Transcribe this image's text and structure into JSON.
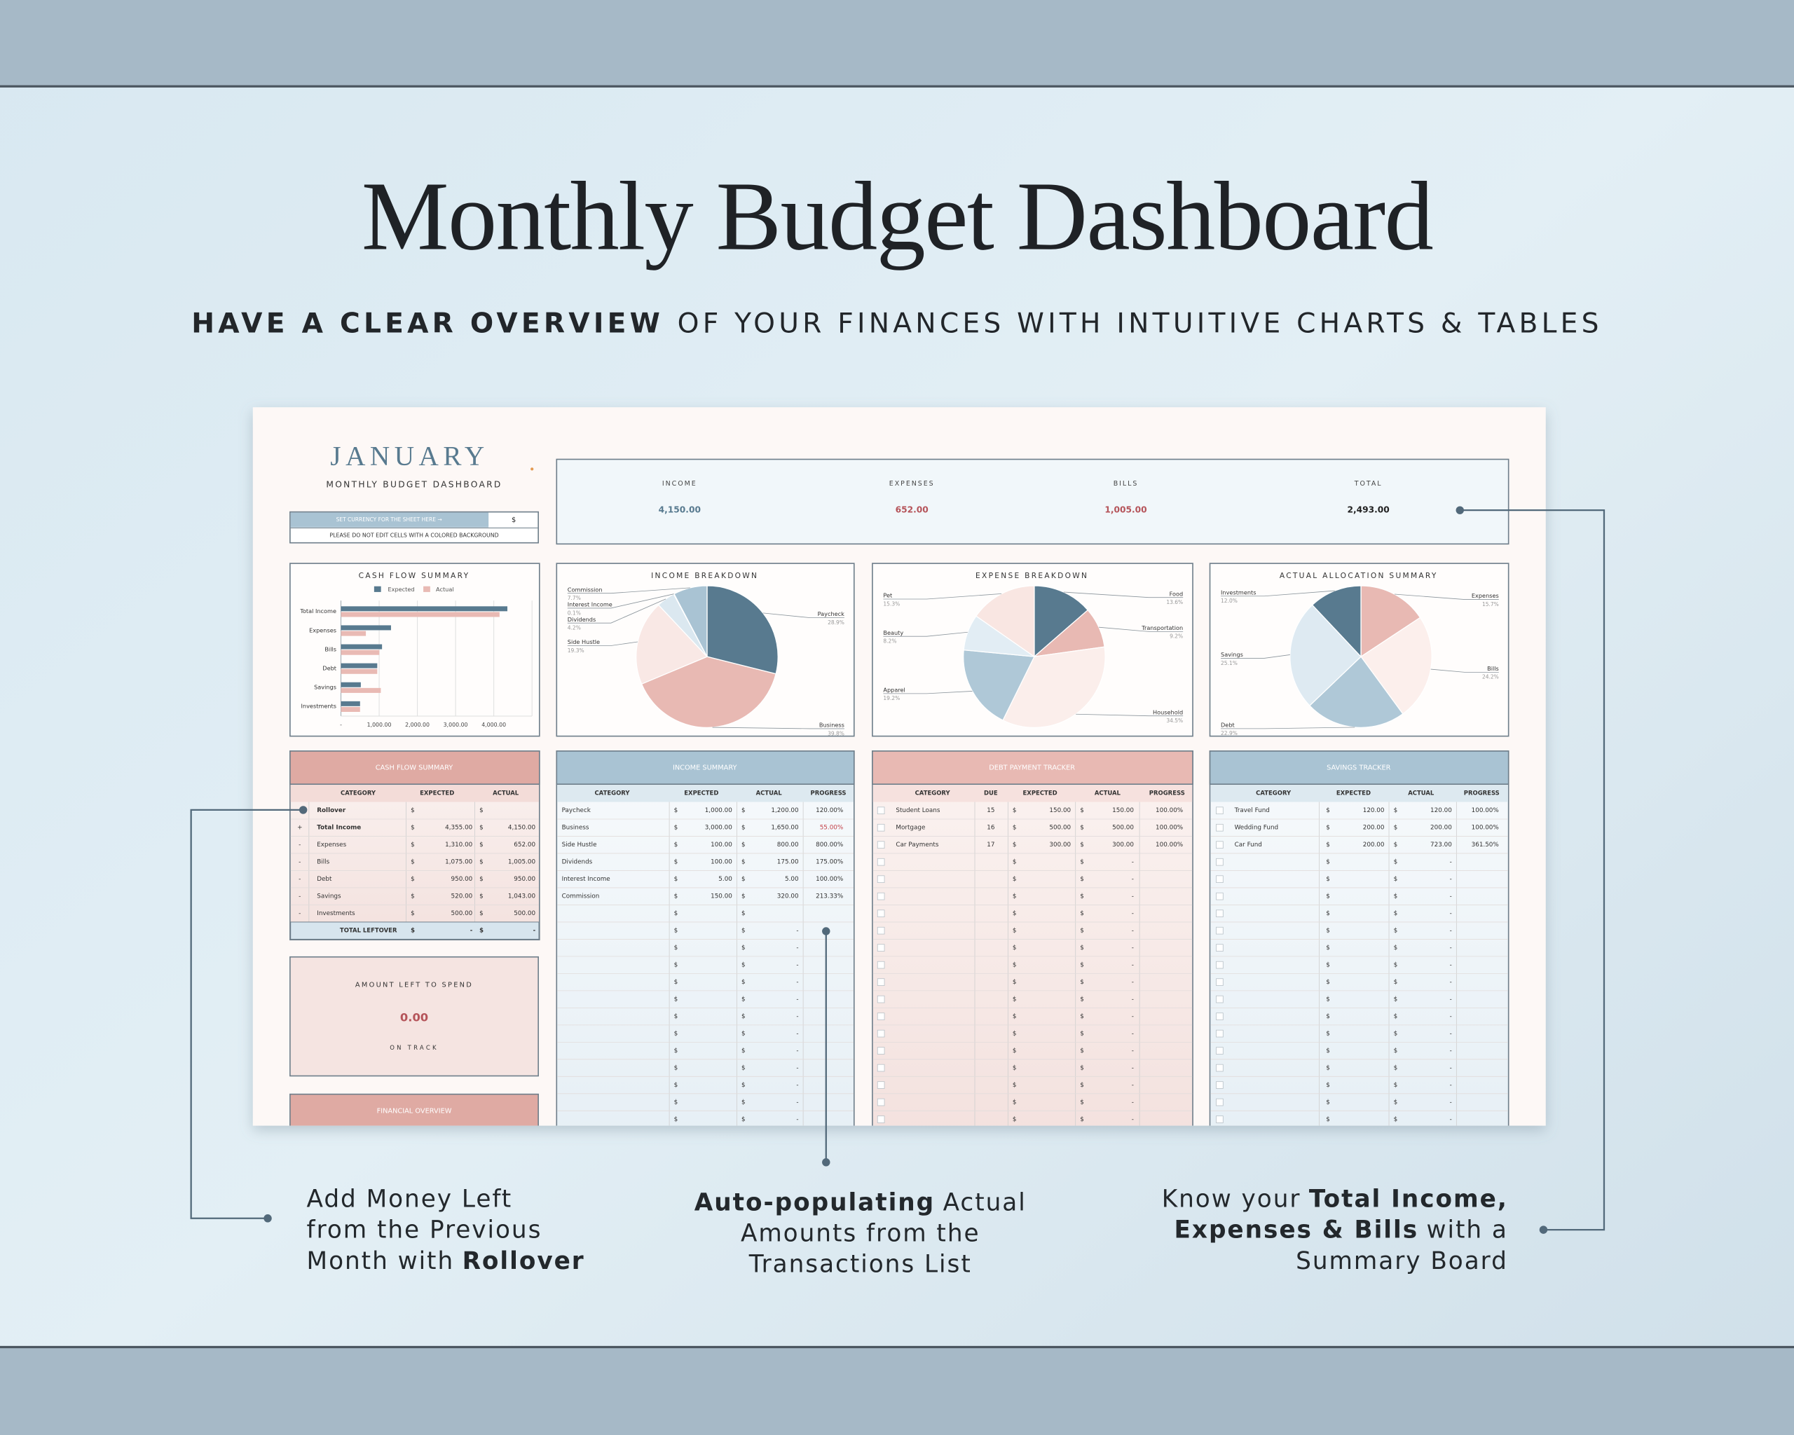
{
  "header": {
    "title": "Monthly Budget Dashboard",
    "subtitle_bold": "HAVE A CLEAR OVERVIEW",
    "subtitle_rest": "OF YOUR FINANCES WITH INTUITIVE CHARTS & TABLES"
  },
  "sheet": {
    "month": "JANUARY",
    "sheet_title": "MONTHLY BUDGET DASHBOARD",
    "currency_note": "SET CURRENCY FOR THE SHEET HERE →",
    "currency": "$",
    "warning": "PLEASE DO NOT EDIT CELLS WITH A COLORED BACKGROUND",
    "summary": [
      {
        "label": "INCOME",
        "value": "4,150.00"
      },
      {
        "label": "EXPENSES",
        "value": "652.00"
      },
      {
        "label": "BILLS",
        "value": "1,005.00"
      },
      {
        "label": "TOTAL",
        "value": "2,493.00"
      }
    ],
    "amount_left": {
      "title": "AMOUNT LEFT TO SPEND",
      "value": "0.00",
      "status": "ON TRACK"
    },
    "financial_overview": "FINANCIAL OVERVIEW"
  },
  "chart_data": [
    {
      "type": "bar",
      "orientation": "horizontal",
      "title": "CASH FLOW SUMMARY",
      "categories": [
        "Total Income",
        "Expenses",
        "Bills",
        "Debt",
        "Savings",
        "Investments"
      ],
      "series": [
        {
          "name": "Expected",
          "color": "#587a8f",
          "values": [
            4355,
            1310,
            1075,
            950,
            520,
            500
          ]
        },
        {
          "name": "Actual",
          "color": "#e9bab4",
          "values": [
            4150,
            652,
            1005,
            950,
            1043,
            500
          ]
        }
      ],
      "xlim": [
        0,
        5000
      ],
      "xticks": [
        {
          "value": 0,
          "label": "-"
        },
        {
          "value": 1000,
          "label": "1,000.00"
        },
        {
          "value": 2000,
          "label": "2,000.00"
        },
        {
          "value": 3000,
          "label": "3,000.00"
        },
        {
          "value": 4000,
          "label": "4,000.00"
        }
      ],
      "grid": true,
      "legend": "top"
    },
    {
      "type": "pie",
      "title": "INCOME BREAKDOWN",
      "categories": [
        "Paycheck",
        "Business",
        "Side Hustle",
        "Dividends",
        "Interest Income",
        "Commission"
      ],
      "values": [
        28.9,
        39.8,
        19.3,
        4.2,
        0.1,
        7.7
      ],
      "value_labels": [
        "28.9%",
        "39.8%",
        "19.3%",
        "4.2%",
        "0.1%",
        "7.7%"
      ],
      "colors": [
        "#587a8f",
        "#e8b9b3",
        "#f9e8e5",
        "#dbe8f0",
        "#eef3f6",
        "#a9c3d3"
      ]
    },
    {
      "type": "pie",
      "title": "EXPENSE BREAKDOWN",
      "categories": [
        "Food",
        "Transportation",
        "Household",
        "Apparel",
        "Beauty",
        "Pet"
      ],
      "values": [
        13.6,
        9.2,
        34.5,
        19.2,
        8.2,
        15.3
      ],
      "value_labels": [
        "13.6%",
        "9.2%",
        "34.5%",
        "19.2%",
        "8.2%",
        "15.3%"
      ],
      "colors": [
        "#587a8f",
        "#e8b9b3",
        "#fbeeeb",
        "#afc8d7",
        "#e2edf4",
        "#f9e6e2"
      ]
    },
    {
      "type": "pie",
      "title": "ACTUAL ALLOCATION SUMMARY",
      "categories": [
        "Expenses",
        "Bills",
        "Debt",
        "Savings",
        "Investments"
      ],
      "values": [
        15.7,
        24.2,
        22.9,
        25.1,
        12.0
      ],
      "value_labels": [
        "15.7%",
        "24.2%",
        "22.9%",
        "25.1%",
        "12.0%"
      ],
      "colors": [
        "#e8b9b3",
        "#fcefec",
        "#afc8d7",
        "#deeaf2",
        "#587a8f"
      ]
    }
  ],
  "tables": {
    "cash_flow": {
      "title": "CASH FLOW SUMMARY",
      "columns": [
        "CATEGORY",
        "EXPECTED",
        "ACTUAL"
      ],
      "rows": [
        [
          null,
          "Rollover",
          "$",
          null,
          "$",
          null
        ],
        [
          "+",
          "Total Income",
          "$",
          "4,355.00",
          "$",
          "4,150.00"
        ],
        [
          "-",
          "Expenses",
          "$",
          "1,310.00",
          "$",
          "652.00"
        ],
        [
          "-",
          "Bills",
          "$",
          "1,075.00",
          "$",
          "1,005.00"
        ],
        [
          "-",
          "Debt",
          "$",
          "950.00",
          "$",
          "950.00"
        ],
        [
          "-",
          "Savings",
          "$",
          "520.00",
          "$",
          "1,043.00"
        ],
        [
          "-",
          "Investments",
          "$",
          "500.00",
          "$",
          "500.00"
        ]
      ],
      "total": [
        "TOTAL LEFTOVER",
        "$",
        "-",
        "$",
        "-"
      ]
    },
    "income": {
      "title": "INCOME SUMMARY",
      "columns": [
        "CATEGORY",
        "EXPECTED",
        "ACTUAL",
        "PROGRESS"
      ],
      "rows": [
        [
          "Paycheck",
          "$",
          "1,000.00",
          "$",
          "1,200.00",
          "120.00%"
        ],
        [
          "Business",
          "$",
          "3,000.00",
          "$",
          "1,650.00",
          "55.00%"
        ],
        [
          "Side Hustle",
          "$",
          "100.00",
          "$",
          "800.00",
          "800.00%"
        ],
        [
          "Dividends",
          "$",
          "100.00",
          "$",
          "175.00",
          "175.00%"
        ],
        [
          "Interest Income",
          "$",
          "5.00",
          "$",
          "5.00",
          "100.00%"
        ],
        [
          "Commission",
          "$",
          "150.00",
          "$",
          "320.00",
          "213.33%"
        ],
        [
          null,
          "$",
          null,
          "$",
          null,
          null
        ],
        [
          null,
          "$",
          null,
          "$",
          "-",
          null
        ],
        [
          null,
          "$",
          null,
          "$",
          "-",
          null
        ],
        [
          null,
          "$",
          null,
          "$",
          "-",
          null
        ],
        [
          null,
          "$",
          null,
          "$",
          "-",
          null
        ],
        [
          null,
          "$",
          null,
          "$",
          "-",
          null
        ],
        [
          null,
          "$",
          null,
          "$",
          "-",
          null
        ],
        [
          null,
          "$",
          null,
          "$",
          "-",
          null
        ],
        [
          null,
          "$",
          null,
          "$",
          "-",
          null
        ],
        [
          null,
          "$",
          null,
          "$",
          "-",
          null
        ],
        [
          null,
          "$",
          null,
          "$",
          "-",
          null
        ],
        [
          null,
          "$",
          null,
          "$",
          "-",
          null
        ],
        [
          null,
          "$",
          null,
          "$",
          "-",
          null
        ]
      ]
    },
    "debt": {
      "title": "DEBT PAYMENT TRACKER",
      "columns": [
        "CATEGORY",
        "DUE",
        "EXPECTED",
        "ACTUAL",
        "PROGRESS"
      ],
      "rows": [
        [
          "Student Loans",
          "15",
          "$",
          "150.00",
          "$",
          "150.00",
          "100.00%"
        ],
        [
          "Mortgage",
          "16",
          "$",
          "500.00",
          "$",
          "500.00",
          "100.00%"
        ],
        [
          "Car Payments",
          "17",
          "$",
          "300.00",
          "$",
          "300.00",
          "100.00%"
        ],
        [
          null,
          null,
          "$",
          null,
          "$",
          "-",
          null
        ],
        [
          null,
          null,
          "$",
          null,
          "$",
          "-",
          null
        ],
        [
          null,
          null,
          "$",
          null,
          "$",
          "-",
          null
        ],
        [
          null,
          null,
          "$",
          null,
          "$",
          "-",
          null
        ],
        [
          null,
          null,
          "$",
          null,
          "$",
          "-",
          null
        ],
        [
          null,
          null,
          "$",
          null,
          "$",
          "-",
          null
        ],
        [
          null,
          null,
          "$",
          null,
          "$",
          "-",
          null
        ],
        [
          null,
          null,
          "$",
          null,
          "$",
          "-",
          null
        ],
        [
          null,
          null,
          "$",
          null,
          "$",
          "-",
          null
        ],
        [
          null,
          null,
          "$",
          null,
          "$",
          "-",
          null
        ],
        [
          null,
          null,
          "$",
          null,
          "$",
          "-",
          null
        ],
        [
          null,
          null,
          "$",
          null,
          "$",
          "-",
          null
        ],
        [
          null,
          null,
          "$",
          null,
          "$",
          "-",
          null
        ],
        [
          null,
          null,
          "$",
          null,
          "$",
          "-",
          null
        ],
        [
          null,
          null,
          "$",
          null,
          "$",
          "-",
          null
        ],
        [
          null,
          null,
          "$",
          null,
          "$",
          "-",
          null
        ]
      ]
    },
    "savings": {
      "title": "SAVINGS TRACKER",
      "columns": [
        "CATEGORY",
        "EXPECTED",
        "ACTUAL",
        "PROGRESS"
      ],
      "rows": [
        [
          "Travel Fund",
          "$",
          "120.00",
          "$",
          "120.00",
          "100.00%"
        ],
        [
          "Wedding Fund",
          "$",
          "200.00",
          "$",
          "200.00",
          "100.00%"
        ],
        [
          "Car Fund",
          "$",
          "200.00",
          "$",
          "723.00",
          "361.50%"
        ],
        [
          null,
          "$",
          null,
          "$",
          "-",
          null
        ],
        [
          null,
          "$",
          null,
          "$",
          "-",
          null
        ],
        [
          null,
          "$",
          null,
          "$",
          "-",
          null
        ],
        [
          null,
          "$",
          null,
          "$",
          "-",
          null
        ],
        [
          null,
          "$",
          null,
          "$",
          "-",
          null
        ],
        [
          null,
          "$",
          null,
          "$",
          "-",
          null
        ],
        [
          null,
          "$",
          null,
          "$",
          "-",
          null
        ],
        [
          null,
          "$",
          null,
          "$",
          "-",
          null
        ],
        [
          null,
          "$",
          null,
          "$",
          "-",
          null
        ],
        [
          null,
          "$",
          null,
          "$",
          "-",
          null
        ],
        [
          null,
          "$",
          null,
          "$",
          "-",
          null
        ],
        [
          null,
          "$",
          null,
          "$",
          "-",
          null
        ],
        [
          null,
          "$",
          null,
          "$",
          "-",
          null
        ],
        [
          null,
          "$",
          null,
          "$",
          "-",
          null
        ],
        [
          null,
          "$",
          null,
          "$",
          "-",
          null
        ],
        [
          null,
          "$",
          null,
          "$",
          "-",
          null
        ]
      ]
    }
  },
  "annotations": [
    {
      "lines": [
        [
          {
            "text": "Add Money Left"
          }
        ],
        [
          {
            "text": "from the Previous"
          }
        ],
        [
          {
            "text": "Month with"
          },
          {
            "text": "Rollover",
            "bold": true
          }
        ]
      ]
    },
    {
      "lines": [
        [
          {
            "text": "Auto-populating",
            "bold": true
          },
          {
            "text": "Actual"
          }
        ],
        [
          {
            "text": "Amounts from the"
          }
        ],
        [
          {
            "text": "Transactions List"
          }
        ]
      ]
    },
    {
      "lines": [
        [
          {
            "text": "Know your"
          },
          {
            "text": "Total Income,",
            "bold": true
          }
        ],
        [
          {
            "text": "Expenses & Bills",
            "bold": true
          },
          {
            "text": "with a"
          }
        ],
        [
          {
            "text": "Summary Board"
          }
        ]
      ]
    }
  ]
}
